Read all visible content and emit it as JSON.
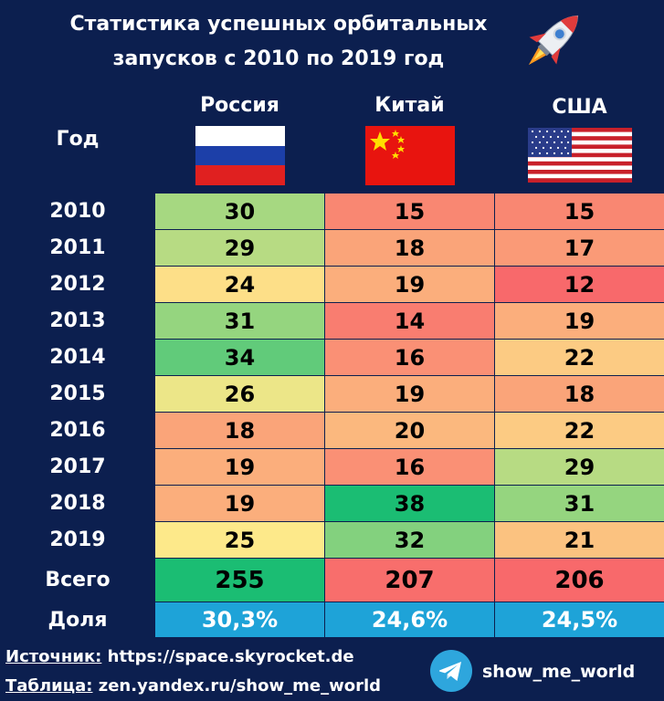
{
  "title_line1": "Статистика успешных орбитальных",
  "title_line2": "запусков с 2010 по 2019 год",
  "chart_data": {
    "type": "table",
    "row_header": "Год",
    "columns": [
      "Россия",
      "Китай",
      "США"
    ],
    "rows": [
      {
        "year": "2010",
        "values": [
          30,
          15,
          15
        ]
      },
      {
        "year": "2011",
        "values": [
          29,
          18,
          17
        ]
      },
      {
        "year": "2012",
        "values": [
          24,
          19,
          12
        ]
      },
      {
        "year": "2013",
        "values": [
          31,
          14,
          19
        ]
      },
      {
        "year": "2014",
        "values": [
          34,
          16,
          22
        ]
      },
      {
        "year": "2015",
        "values": [
          26,
          19,
          18
        ]
      },
      {
        "year": "2016",
        "values": [
          18,
          20,
          22
        ]
      },
      {
        "year": "2017",
        "values": [
          19,
          16,
          29
        ]
      },
      {
        "year": "2018",
        "values": [
          19,
          38,
          31
        ]
      },
      {
        "year": "2019",
        "values": [
          25,
          32,
          21
        ]
      }
    ],
    "total_label": "Всего",
    "totals": [
      255,
      207,
      206
    ],
    "share_label": "Доля",
    "shares": [
      "30,3%",
      "24,6%",
      "24,5%"
    ],
    "colors": {
      "background": "#0c1f4f",
      "high": "#1bbd73",
      "mid": "#fde98a",
      "low": "#f8696b",
      "share": "#1ea3d8"
    }
  },
  "footer": {
    "source_key": "Источник:",
    "source_value": " https://space.skyrocket.de",
    "table_key": "Таблица:",
    "table_value": " zen.yandex.ru/show_me_world",
    "telegram_icon": "telegram-icon",
    "handle": "show_me_world"
  }
}
